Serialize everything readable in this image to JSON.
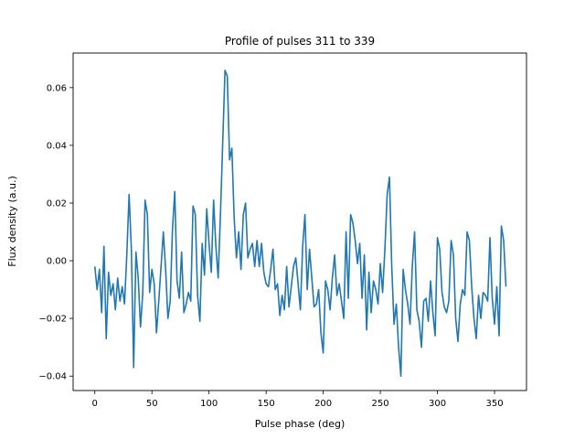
{
  "chart_data": {
    "type": "line",
    "title": "Profile of pulses 311 to 339",
    "xlabel": "Pulse phase (deg)",
    "ylabel": "Flux density (a.u.)",
    "xlim": [
      -19,
      378
    ],
    "ylim": [
      -0.045,
      0.072
    ],
    "xticks": [
      0,
      50,
      100,
      150,
      200,
      250,
      300,
      350
    ],
    "yticks": [
      -0.04,
      -0.02,
      0.0,
      0.02,
      0.04,
      0.06
    ],
    "ytick_labels": [
      "−0.04",
      "−0.02",
      "0.00",
      "0.02",
      "0.04",
      "0.06"
    ],
    "grid": false,
    "line_color": "#1f77b4",
    "series": [
      {
        "x": [
          0,
          2,
          4,
          6,
          8,
          10,
          12,
          14,
          16,
          18,
          20,
          22,
          24,
          26,
          28,
          30,
          32,
          34,
          36,
          38,
          40,
          42,
          44,
          46,
          48,
          50,
          52,
          54,
          56,
          58,
          60,
          62,
          64,
          66,
          68,
          70,
          72,
          74,
          76,
          78,
          80,
          82,
          84,
          86,
          88,
          90,
          92,
          94,
          96,
          98,
          100,
          102,
          104,
          106,
          108,
          110,
          112,
          114,
          116,
          118,
          120,
          122,
          124,
          126,
          128,
          130,
          132,
          134,
          136,
          138,
          140,
          142,
          144,
          146,
          148,
          150,
          152,
          154,
          156,
          158,
          160,
          162,
          164,
          166,
          168,
          170,
          172,
          174,
          176,
          178,
          180,
          182,
          184,
          186,
          188,
          190,
          192,
          194,
          196,
          198,
          200,
          202,
          204,
          206,
          208,
          210,
          212,
          214,
          216,
          218,
          220,
          222,
          224,
          226,
          228,
          230,
          232,
          234,
          236,
          238,
          240,
          242,
          244,
          246,
          248,
          250,
          252,
          254,
          256,
          258,
          260,
          262,
          264,
          266,
          268,
          270,
          272,
          274,
          276,
          278,
          280,
          282,
          284,
          286,
          288,
          290,
          292,
          294,
          296,
          298,
          300,
          302,
          304,
          306,
          308,
          310,
          312,
          314,
          316,
          318,
          320,
          322,
          324,
          326,
          328,
          330,
          332,
          334,
          336,
          338,
          340,
          342,
          344,
          346,
          348,
          350,
          352,
          354,
          356,
          358,
          360
        ],
        "y": [
          -0.002,
          -0.01,
          -0.003,
          -0.018,
          0.005,
          -0.027,
          -0.004,
          -0.012,
          -0.008,
          -0.017,
          -0.006,
          -0.014,
          -0.009,
          -0.015,
          0.002,
          0.023,
          0.004,
          -0.037,
          0.003,
          -0.006,
          -0.023,
          -0.011,
          0.021,
          0.016,
          -0.011,
          -0.003,
          -0.008,
          -0.025,
          -0.014,
          -0.002,
          0.01,
          -0.003,
          -0.02,
          -0.014,
          0.011,
          0.024,
          -0.007,
          -0.013,
          0.003,
          -0.018,
          -0.015,
          -0.011,
          -0.014,
          0.019,
          0.016,
          -0.012,
          -0.021,
          0.006,
          -0.005,
          0.018,
          0.006,
          -0.004,
          0.021,
          0.005,
          -0.006,
          0.016,
          0.041,
          0.066,
          0.064,
          0.035,
          0.039,
          0.015,
          0.001,
          0.01,
          -0.003,
          0.016,
          0.02,
          0.001,
          0.004,
          0.006,
          -0.002,
          0.007,
          -0.002,
          0.006,
          -0.004,
          -0.008,
          -0.009,
          -0.003,
          0.004,
          -0.01,
          -0.008,
          -0.019,
          -0.012,
          -0.017,
          -0.002,
          -0.016,
          -0.009,
          -0.002,
          0.001,
          -0.008,
          -0.017,
          0.005,
          0.016,
          -0.01,
          0.004,
          -0.006,
          -0.016,
          -0.015,
          -0.01,
          -0.025,
          -0.032,
          -0.007,
          -0.01,
          -0.017,
          -0.006,
          0.002,
          -0.012,
          -0.008,
          -0.014,
          -0.02,
          0.01,
          -0.013,
          0.016,
          0.013,
          0.007,
          -0.001,
          0.006,
          -0.013,
          0.002,
          -0.024,
          -0.004,
          -0.018,
          -0.007,
          -0.01,
          -0.015,
          -0.001,
          -0.011,
          0.004,
          0.023,
          0.029,
          -0.002,
          -0.022,
          -0.015,
          -0.03,
          -0.04,
          -0.003,
          -0.01,
          -0.015,
          -0.022,
          -0.002,
          0.01,
          -0.017,
          -0.021,
          -0.03,
          -0.014,
          -0.013,
          -0.021,
          -0.007,
          -0.018,
          -0.026,
          0.008,
          0.004,
          -0.011,
          -0.016,
          -0.018,
          -0.014,
          0.007,
          0.002,
          -0.02,
          -0.028,
          -0.015,
          -0.01,
          -0.012,
          0.01,
          0.007,
          -0.009,
          -0.02,
          -0.027,
          -0.012,
          -0.02,
          -0.011,
          -0.012,
          -0.014,
          0.008,
          -0.013,
          -0.022,
          -0.009,
          -0.026,
          0.012,
          0.007,
          -0.009
        ]
      }
    ]
  }
}
